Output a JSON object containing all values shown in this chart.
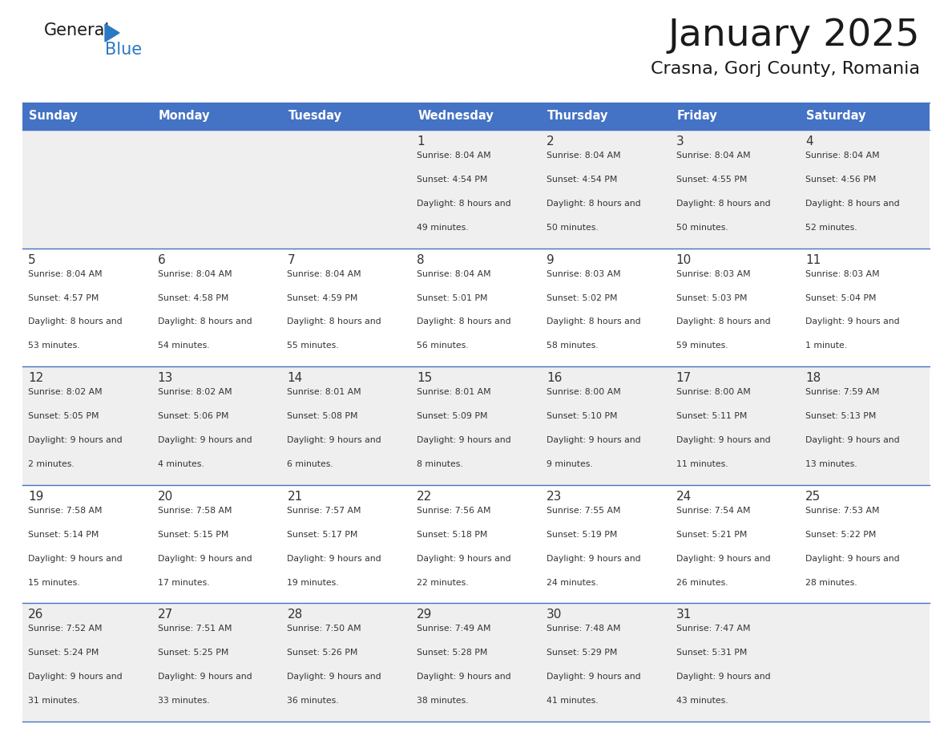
{
  "title": "January 2025",
  "subtitle": "Crasna, Gorj County, Romania",
  "days_of_week": [
    "Sunday",
    "Monday",
    "Tuesday",
    "Wednesday",
    "Thursday",
    "Friday",
    "Saturday"
  ],
  "header_bg": "#4472C4",
  "header_text": "#FFFFFF",
  "cell_bg_light": "#EFEFEF",
  "cell_bg_white": "#FFFFFF",
  "text_color": "#333333",
  "line_color": "#4472C4",
  "title_color": "#1a1a1a",
  "subtitle_color": "#1a1a1a",
  "logo_general_color": "#1a1a1a",
  "logo_blue_color": "#2B79C2",
  "calendar_data": [
    [
      {
        "date": "",
        "sunrise": "",
        "sunset": "",
        "daylight": ""
      },
      {
        "date": "",
        "sunrise": "",
        "sunset": "",
        "daylight": ""
      },
      {
        "date": "",
        "sunrise": "",
        "sunset": "",
        "daylight": ""
      },
      {
        "date": "1",
        "sunrise": "8:04 AM",
        "sunset": "4:54 PM",
        "daylight": "8 hours and 49 minutes."
      },
      {
        "date": "2",
        "sunrise": "8:04 AM",
        "sunset": "4:54 PM",
        "daylight": "8 hours and 50 minutes."
      },
      {
        "date": "3",
        "sunrise": "8:04 AM",
        "sunset": "4:55 PM",
        "daylight": "8 hours and 50 minutes."
      },
      {
        "date": "4",
        "sunrise": "8:04 AM",
        "sunset": "4:56 PM",
        "daylight": "8 hours and 52 minutes."
      }
    ],
    [
      {
        "date": "5",
        "sunrise": "8:04 AM",
        "sunset": "4:57 PM",
        "daylight": "8 hours and 53 minutes."
      },
      {
        "date": "6",
        "sunrise": "8:04 AM",
        "sunset": "4:58 PM",
        "daylight": "8 hours and 54 minutes."
      },
      {
        "date": "7",
        "sunrise": "8:04 AM",
        "sunset": "4:59 PM",
        "daylight": "8 hours and 55 minutes."
      },
      {
        "date": "8",
        "sunrise": "8:04 AM",
        "sunset": "5:01 PM",
        "daylight": "8 hours and 56 minutes."
      },
      {
        "date": "9",
        "sunrise": "8:03 AM",
        "sunset": "5:02 PM",
        "daylight": "8 hours and 58 minutes."
      },
      {
        "date": "10",
        "sunrise": "8:03 AM",
        "sunset": "5:03 PM",
        "daylight": "8 hours and 59 minutes."
      },
      {
        "date": "11",
        "sunrise": "8:03 AM",
        "sunset": "5:04 PM",
        "daylight": "9 hours and 1 minute."
      }
    ],
    [
      {
        "date": "12",
        "sunrise": "8:02 AM",
        "sunset": "5:05 PM",
        "daylight": "9 hours and 2 minutes."
      },
      {
        "date": "13",
        "sunrise": "8:02 AM",
        "sunset": "5:06 PM",
        "daylight": "9 hours and 4 minutes."
      },
      {
        "date": "14",
        "sunrise": "8:01 AM",
        "sunset": "5:08 PM",
        "daylight": "9 hours and 6 minutes."
      },
      {
        "date": "15",
        "sunrise": "8:01 AM",
        "sunset": "5:09 PM",
        "daylight": "9 hours and 8 minutes."
      },
      {
        "date": "16",
        "sunrise": "8:00 AM",
        "sunset": "5:10 PM",
        "daylight": "9 hours and 9 minutes."
      },
      {
        "date": "17",
        "sunrise": "8:00 AM",
        "sunset": "5:11 PM",
        "daylight": "9 hours and 11 minutes."
      },
      {
        "date": "18",
        "sunrise": "7:59 AM",
        "sunset": "5:13 PM",
        "daylight": "9 hours and 13 minutes."
      }
    ],
    [
      {
        "date": "19",
        "sunrise": "7:58 AM",
        "sunset": "5:14 PM",
        "daylight": "9 hours and 15 minutes."
      },
      {
        "date": "20",
        "sunrise": "7:58 AM",
        "sunset": "5:15 PM",
        "daylight": "9 hours and 17 minutes."
      },
      {
        "date": "21",
        "sunrise": "7:57 AM",
        "sunset": "5:17 PM",
        "daylight": "9 hours and 19 minutes."
      },
      {
        "date": "22",
        "sunrise": "7:56 AM",
        "sunset": "5:18 PM",
        "daylight": "9 hours and 22 minutes."
      },
      {
        "date": "23",
        "sunrise": "7:55 AM",
        "sunset": "5:19 PM",
        "daylight": "9 hours and 24 minutes."
      },
      {
        "date": "24",
        "sunrise": "7:54 AM",
        "sunset": "5:21 PM",
        "daylight": "9 hours and 26 minutes."
      },
      {
        "date": "25",
        "sunrise": "7:53 AM",
        "sunset": "5:22 PM",
        "daylight": "9 hours and 28 minutes."
      }
    ],
    [
      {
        "date": "26",
        "sunrise": "7:52 AM",
        "sunset": "5:24 PM",
        "daylight": "9 hours and 31 minutes."
      },
      {
        "date": "27",
        "sunrise": "7:51 AM",
        "sunset": "5:25 PM",
        "daylight": "9 hours and 33 minutes."
      },
      {
        "date": "28",
        "sunrise": "7:50 AM",
        "sunset": "5:26 PM",
        "daylight": "9 hours and 36 minutes."
      },
      {
        "date": "29",
        "sunrise": "7:49 AM",
        "sunset": "5:28 PM",
        "daylight": "9 hours and 38 minutes."
      },
      {
        "date": "30",
        "sunrise": "7:48 AM",
        "sunset": "5:29 PM",
        "daylight": "9 hours and 41 minutes."
      },
      {
        "date": "31",
        "sunrise": "7:47 AM",
        "sunset": "5:31 PM",
        "daylight": "9 hours and 43 minutes."
      },
      {
        "date": "",
        "sunrise": "",
        "sunset": "",
        "daylight": ""
      }
    ]
  ]
}
